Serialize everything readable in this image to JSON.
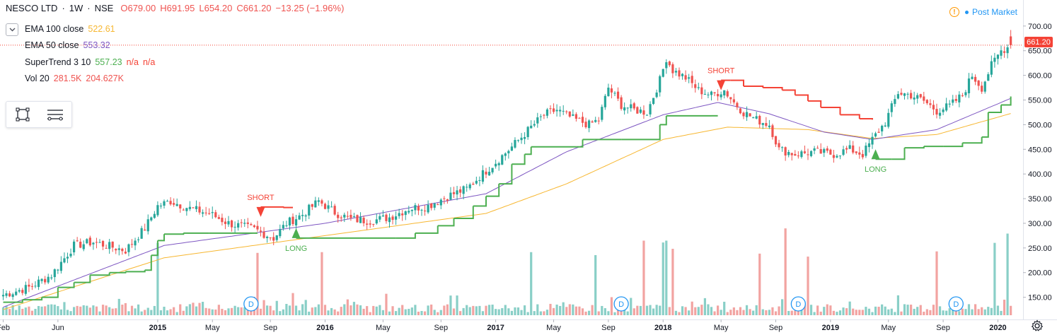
{
  "header": {
    "symbol": "NESCO LTD",
    "interval": "1W",
    "exchange": "NSE",
    "open": "O679.00",
    "high": "H691.95",
    "low": "L654.20",
    "close": "C661.20",
    "change": "−13.25 (−1.96%)"
  },
  "indicators": [
    {
      "name": "EMA 100 close",
      "values": [
        "522.61"
      ],
      "colors": [
        "#f7b731"
      ]
    },
    {
      "name": "EMA 50 close",
      "values": [
        "553.32"
      ],
      "colors": [
        "#7e57c2"
      ]
    },
    {
      "name": "SuperTrend 3 10",
      "values": [
        "557.23",
        "n/a",
        "n/a"
      ],
      "colors": [
        "#4caf50",
        "#f44336",
        "#f44336"
      ]
    },
    {
      "name": "Vol 20",
      "values": [
        "281.5K",
        "204.627K"
      ],
      "colors": [
        "#ef5350",
        "#ef5350"
      ]
    }
  ],
  "status": {
    "post_market": "Post Market"
  },
  "last_price": "661.20",
  "colors": {
    "up": "#26a69a",
    "down": "#ef5350",
    "vol_up": "#89cfc7",
    "vol_down": "#f2a3a1",
    "ema100": "#f7b731",
    "ema50": "#7e57c2",
    "st_up": "#4caf50",
    "st_down": "#f44336",
    "accent": "#2196f3"
  },
  "icons": {
    "collapse": "chevron-down-icon",
    "rectangle_tool": "rectangle-icon",
    "lines_tool": "lines-icon",
    "settings": "gear-icon",
    "warning": "exclamation-icon"
  },
  "chart_data": {
    "type": "candlestick",
    "title": "NESCO LTD · 1W · NSE",
    "x_ticks": [
      "Feb",
      "Jun",
      "2015",
      "May",
      "Sep",
      "2016",
      "May",
      "Sep",
      "2017",
      "May",
      "Sep",
      "2018",
      "May",
      "Sep",
      "2019",
      "May",
      "Sep",
      "2020"
    ],
    "x_tick_index": [
      0,
      17,
      48,
      65,
      83,
      100,
      118,
      136,
      153,
      171,
      188,
      205,
      223,
      240,
      257,
      275,
      292,
      309
    ],
    "y_ticks": [
      150,
      200,
      250,
      300,
      350,
      400,
      450,
      500,
      550,
      600,
      650,
      700
    ],
    "ylim": [
      105,
      727
    ],
    "volume_max": 240,
    "grid": false,
    "anchors": [
      [
        0,
        155
      ],
      [
        8,
        170
      ],
      [
        15,
        195
      ],
      [
        22,
        255
      ],
      [
        28,
        262
      ],
      [
        32,
        255
      ],
      [
        38,
        245
      ],
      [
        44,
        290
      ],
      [
        48,
        335
      ],
      [
        52,
        345
      ],
      [
        58,
        330
      ],
      [
        64,
        320
      ],
      [
        70,
        300
      ],
      [
        78,
        288
      ],
      [
        84,
        270
      ],
      [
        88,
        300
      ],
      [
        93,
        318
      ],
      [
        98,
        345
      ],
      [
        103,
        322
      ],
      [
        108,
        308
      ],
      [
        114,
        305
      ],
      [
        120,
        312
      ],
      [
        126,
        330
      ],
      [
        132,
        335
      ],
      [
        138,
        355
      ],
      [
        144,
        370
      ],
      [
        148,
        395
      ],
      [
        152,
        418
      ],
      [
        158,
        455
      ],
      [
        164,
        495
      ],
      [
        168,
        520
      ],
      [
        172,
        530
      ],
      [
        177,
        512
      ],
      [
        182,
        500
      ],
      [
        185,
        510
      ],
      [
        188,
        575
      ],
      [
        192,
        540
      ],
      [
        196,
        530
      ],
      [
        200,
        525
      ],
      [
        204,
        590
      ],
      [
        206,
        635
      ],
      [
        208,
        610
      ],
      [
        212,
        595
      ],
      [
        216,
        570
      ],
      [
        220,
        560
      ],
      [
        224,
        570
      ],
      [
        227,
        545
      ],
      [
        230,
        525
      ],
      [
        234,
        510
      ],
      [
        238,
        500
      ],
      [
        241,
        450
      ],
      [
        246,
        440
      ],
      [
        252,
        445
      ],
      [
        258,
        440
      ],
      [
        263,
        450
      ],
      [
        267,
        440
      ],
      [
        270,
        470
      ],
      [
        274,
        505
      ],
      [
        278,
        565
      ],
      [
        282,
        560
      ],
      [
        286,
        548
      ],
      [
        290,
        528
      ],
      [
        294,
        538
      ],
      [
        298,
        560
      ],
      [
        301,
        600
      ],
      [
        304,
        575
      ],
      [
        307,
        620
      ],
      [
        310,
        650
      ],
      [
        313,
        661.2
      ]
    ],
    "volume_spikes": [
      {
        "i": 48,
        "v": 195
      },
      {
        "i": 79,
        "v": 168
      },
      {
        "i": 99,
        "v": 170
      },
      {
        "i": 164,
        "v": 170
      },
      {
        "i": 184,
        "v": 162
      },
      {
        "i": 199,
        "v": 201
      },
      {
        "i": 205,
        "v": 196
      },
      {
        "i": 206,
        "v": 201
      },
      {
        "i": 208,
        "v": 179
      },
      {
        "i": 235,
        "v": 166
      },
      {
        "i": 243,
        "v": 234
      },
      {
        "i": 250,
        "v": 158
      },
      {
        "i": 290,
        "v": 172
      },
      {
        "i": 308,
        "v": 195
      },
      {
        "i": 312,
        "v": 220
      }
    ],
    "supertrend": [
      [
        0,
        140,
        "up"
      ],
      [
        6,
        145,
        "up"
      ],
      [
        12,
        150,
        "up"
      ],
      [
        17,
        170,
        "up"
      ],
      [
        22,
        180,
        "up"
      ],
      [
        27,
        195,
        "up"
      ],
      [
        33,
        200,
        "up"
      ],
      [
        38,
        202,
        "up"
      ],
      [
        44,
        205,
        "up"
      ],
      [
        46,
        235,
        "up"
      ],
      [
        48,
        265,
        "up"
      ],
      [
        50,
        278,
        "up"
      ],
      [
        56,
        280,
        "up"
      ],
      [
        64,
        280,
        "up"
      ],
      [
        70,
        280,
        "up"
      ],
      [
        79,
        280,
        "up"
      ],
      [
        80,
        333,
        "down"
      ],
      [
        87,
        332,
        "down"
      ],
      [
        90,
        332,
        "down"
      ],
      [
        91,
        270,
        "up"
      ],
      [
        100,
        270,
        "up"
      ],
      [
        110,
        270,
        "up"
      ],
      [
        122,
        270,
        "up"
      ],
      [
        128,
        280,
        "up"
      ],
      [
        135,
        295,
        "up"
      ],
      [
        140,
        310,
        "up"
      ],
      [
        146,
        335,
        "up"
      ],
      [
        150,
        355,
        "up"
      ],
      [
        154,
        380,
        "up"
      ],
      [
        158,
        420,
        "up"
      ],
      [
        162,
        440,
        "up"
      ],
      [
        164,
        455,
        "up"
      ],
      [
        178,
        455,
        "up"
      ],
      [
        180,
        470,
        "up"
      ],
      [
        192,
        470,
        "up"
      ],
      [
        200,
        470,
        "up"
      ],
      [
        204,
        500,
        "up"
      ],
      [
        206,
        518,
        "up"
      ],
      [
        220,
        518,
        "up"
      ],
      [
        222,
        518,
        "up"
      ],
      [
        223,
        590,
        "down"
      ],
      [
        226,
        590,
        "down"
      ],
      [
        230,
        578,
        "down"
      ],
      [
        236,
        575,
        "down"
      ],
      [
        242,
        570,
        "down"
      ],
      [
        246,
        560,
        "down"
      ],
      [
        250,
        548,
        "down"
      ],
      [
        254,
        535,
        "down"
      ],
      [
        260,
        520,
        "down"
      ],
      [
        266,
        512,
        "down"
      ],
      [
        270,
        510,
        "down"
      ],
      [
        271,
        430,
        "up"
      ],
      [
        276,
        430,
        "up"
      ],
      [
        280,
        453,
        "up"
      ],
      [
        286,
        456,
        "up"
      ],
      [
        292,
        456,
        "up"
      ],
      [
        298,
        463,
        "up"
      ],
      [
        304,
        475,
        "up"
      ],
      [
        306,
        525,
        "up"
      ],
      [
        310,
        540,
        "up"
      ],
      [
        313,
        557.23,
        "up"
      ]
    ],
    "signals": [
      {
        "i": 80,
        "label": "SHORT",
        "dir": "short",
        "price": 333
      },
      {
        "i": 91,
        "label": "LONG",
        "dir": "long",
        "price": 270
      },
      {
        "i": 223,
        "label": "SHORT",
        "dir": "short",
        "price": 590
      },
      {
        "i": 271,
        "label": "LONG",
        "dir": "long",
        "price": 430
      }
    ],
    "dividend_markers": [
      {
        "i": 77,
        "label": "D"
      },
      {
        "i": 192,
        "label": "D"
      },
      {
        "i": 247,
        "label": "D"
      },
      {
        "i": 296,
        "label": "D"
      }
    ],
    "ema_anchors": {
      "ema100": [
        [
          0,
          125
        ],
        [
          50,
          230
        ],
        [
          100,
          275
        ],
        [
          150,
          320
        ],
        [
          175,
          380
        ],
        [
          205,
          470
        ],
        [
          225,
          495
        ],
        [
          250,
          490
        ],
        [
          270,
          472
        ],
        [
          290,
          480
        ],
        [
          313,
          522.61
        ]
      ],
      "ema50": [
        [
          0,
          130
        ],
        [
          50,
          255
        ],
        [
          100,
          300
        ],
        [
          150,
          360
        ],
        [
          175,
          445
        ],
        [
          205,
          520
        ],
        [
          222,
          545
        ],
        [
          238,
          522
        ],
        [
          255,
          485
        ],
        [
          270,
          470
        ],
        [
          290,
          490
        ],
        [
          313,
          553.32
        ]
      ]
    }
  }
}
